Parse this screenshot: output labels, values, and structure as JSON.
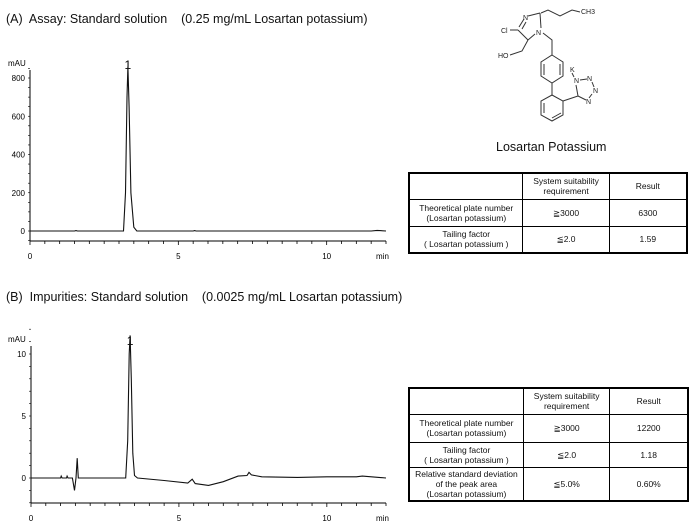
{
  "chart_data": [
    {
      "type": "line",
      "title": "(A)  Assay: Standard solution    (0.25 mg/mL Losartan potassium)",
      "ylabel": "mAU",
      "xlabel": "min",
      "xlim": [
        0,
        12
      ],
      "ylim": [
        -50,
        880
      ],
      "xticks": [
        "0",
        "5",
        "10"
      ],
      "yticks": [
        "0",
        "200",
        "400",
        "600",
        "800"
      ],
      "peak_labels": [
        {
          "label": "1",
          "x": 3.3
        }
      ],
      "trace": [
        [
          0,
          0
        ],
        [
          1.5,
          0
        ],
        [
          1.55,
          2
        ],
        [
          1.6,
          0
        ],
        [
          3.15,
          0
        ],
        [
          3.22,
          200
        ],
        [
          3.27,
          700
        ],
        [
          3.3,
          860
        ],
        [
          3.34,
          650
        ],
        [
          3.4,
          200
        ],
        [
          3.5,
          20
        ],
        [
          3.6,
          0
        ],
        [
          5.5,
          0
        ],
        [
          5.55,
          2
        ],
        [
          5.6,
          0
        ],
        [
          11.5,
          0
        ],
        [
          11.7,
          3
        ],
        [
          12,
          0
        ]
      ]
    },
    {
      "type": "line",
      "title": "(B)  Impurities: Standard solution    (0.0025 mg/mL Losartan potassium)",
      "ylabel": "mAU",
      "xlabel": "min",
      "xlim": [
        0,
        12
      ],
      "ylim": [
        -2,
        12.5
      ],
      "xticks": [
        "0",
        "5",
        "10"
      ],
      "yticks": [
        "0",
        "5",
        "10"
      ],
      "peak_labels": [
        {
          "label": "1",
          "x": 3.35
        }
      ],
      "trace": [
        [
          0,
          0
        ],
        [
          1.0,
          0
        ],
        [
          1.02,
          0.15
        ],
        [
          1.05,
          0
        ],
        [
          1.2,
          0
        ],
        [
          1.22,
          0.15
        ],
        [
          1.25,
          0
        ],
        [
          1.4,
          0
        ],
        [
          1.47,
          -1.0
        ],
        [
          1.52,
          0
        ],
        [
          1.56,
          1.6
        ],
        [
          1.6,
          0
        ],
        [
          1.7,
          0
        ],
        [
          3.2,
          0
        ],
        [
          3.27,
          3
        ],
        [
          3.32,
          10
        ],
        [
          3.35,
          11.5
        ],
        [
          3.39,
          8
        ],
        [
          3.44,
          2
        ],
        [
          3.5,
          0.2
        ],
        [
          3.6,
          0
        ],
        [
          4.5,
          -0.2
        ],
        [
          5.3,
          -0.4
        ],
        [
          5.45,
          -0.1
        ],
        [
          5.55,
          -0.45
        ],
        [
          6.0,
          -0.6
        ],
        [
          6.5,
          -0.3
        ],
        [
          7.0,
          0.15
        ],
        [
          7.3,
          0.2
        ],
        [
          7.37,
          0.45
        ],
        [
          7.45,
          0.25
        ],
        [
          7.8,
          0.1
        ],
        [
          9,
          0.05
        ],
        [
          10,
          0.1
        ],
        [
          11,
          0.1
        ],
        [
          11.2,
          0.15
        ],
        [
          12,
          0
        ]
      ]
    }
  ],
  "molecule": {
    "name": "Losartan Potassium",
    "atoms": {
      "ch3": "CH3",
      "cl": "Cl",
      "ho": "HO",
      "n": "N",
      "k": "K"
    }
  },
  "tableA": {
    "header": [
      "",
      "System  suitability\nrequirement",
      "Result"
    ],
    "rows": [
      [
        "Theoretical plate number\n(Losartan potassium)",
        "≧3000",
        "6300"
      ],
      [
        "Tailing factor\n( Losartan potassium )",
        "≦2.0",
        "1.59"
      ]
    ]
  },
  "tableB": {
    "header": [
      "",
      "System  suitability\nrequirement",
      "Result"
    ],
    "rows": [
      [
        "Theoretical plate number\n(Losartan potassium)",
        "≧3000",
        "12200"
      ],
      [
        "Tailing factor\n( Losartan potassium )",
        "≦2.0",
        "1.18"
      ],
      [
        "Relative standard deviation\nof the peak area\n(Losartan potassium)",
        "≦5.0%",
        "0.60%"
      ]
    ]
  }
}
